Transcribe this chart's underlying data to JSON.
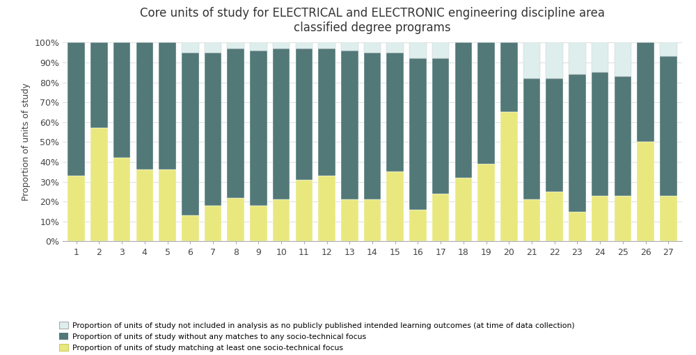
{
  "title": "Core units of study for ELECTRICAL and ELECTRONIC engineering discipline area\nclassified degree programs",
  "ylabel": "Proportion of units of study",
  "categories": [
    1,
    2,
    3,
    4,
    5,
    6,
    7,
    8,
    9,
    10,
    11,
    12,
    13,
    14,
    15,
    16,
    17,
    18,
    19,
    20,
    21,
    22,
    23,
    24,
    25,
    26,
    27
  ],
  "yellow": [
    0.33,
    0.57,
    0.42,
    0.36,
    0.36,
    0.13,
    0.18,
    0.22,
    0.18,
    0.21,
    0.31,
    0.33,
    0.21,
    0.21,
    0.35,
    0.16,
    0.24,
    0.32,
    0.39,
    0.65,
    0.21,
    0.25,
    0.15,
    0.23,
    0.23,
    0.5,
    0.23
  ],
  "teal": [
    0.67,
    0.43,
    0.58,
    0.64,
    0.64,
    0.82,
    0.77,
    0.75,
    0.78,
    0.76,
    0.66,
    0.64,
    0.75,
    0.74,
    0.6,
    0.76,
    0.68,
    0.68,
    0.61,
    0.35,
    0.61,
    0.57,
    0.69,
    0.62,
    0.6,
    0.5,
    0.7
  ],
  "white_top": [
    0.0,
    0.0,
    0.0,
    0.0,
    0.0,
    0.05,
    0.05,
    0.03,
    0.04,
    0.03,
    0.03,
    0.03,
    0.04,
    0.05,
    0.05,
    0.08,
    0.08,
    0.0,
    0.0,
    0.0,
    0.18,
    0.18,
    0.16,
    0.15,
    0.17,
    0.0,
    0.07
  ],
  "color_yellow": "#e8e87f",
  "color_teal": "#527878",
  "color_white_top": "#ddeeed",
  "legend_labels": [
    "Proportion of units of study not included in analysis as no publicly published intended learning outcomes (at time of data collection)",
    "Proportion of units of study without any matches to any socio-technical focus",
    "Proportion of units of study matching at least one socio-technical focus"
  ],
  "ylim": [
    0,
    1.0
  ],
  "yticks": [
    0.0,
    0.1,
    0.2,
    0.3,
    0.4,
    0.5,
    0.6,
    0.7,
    0.8,
    0.9,
    1.0
  ],
  "yticklabels": [
    "0%",
    "10%",
    "20%",
    "30%",
    "40%",
    "50%",
    "60%",
    "70%",
    "80%",
    "90%",
    "100%"
  ]
}
